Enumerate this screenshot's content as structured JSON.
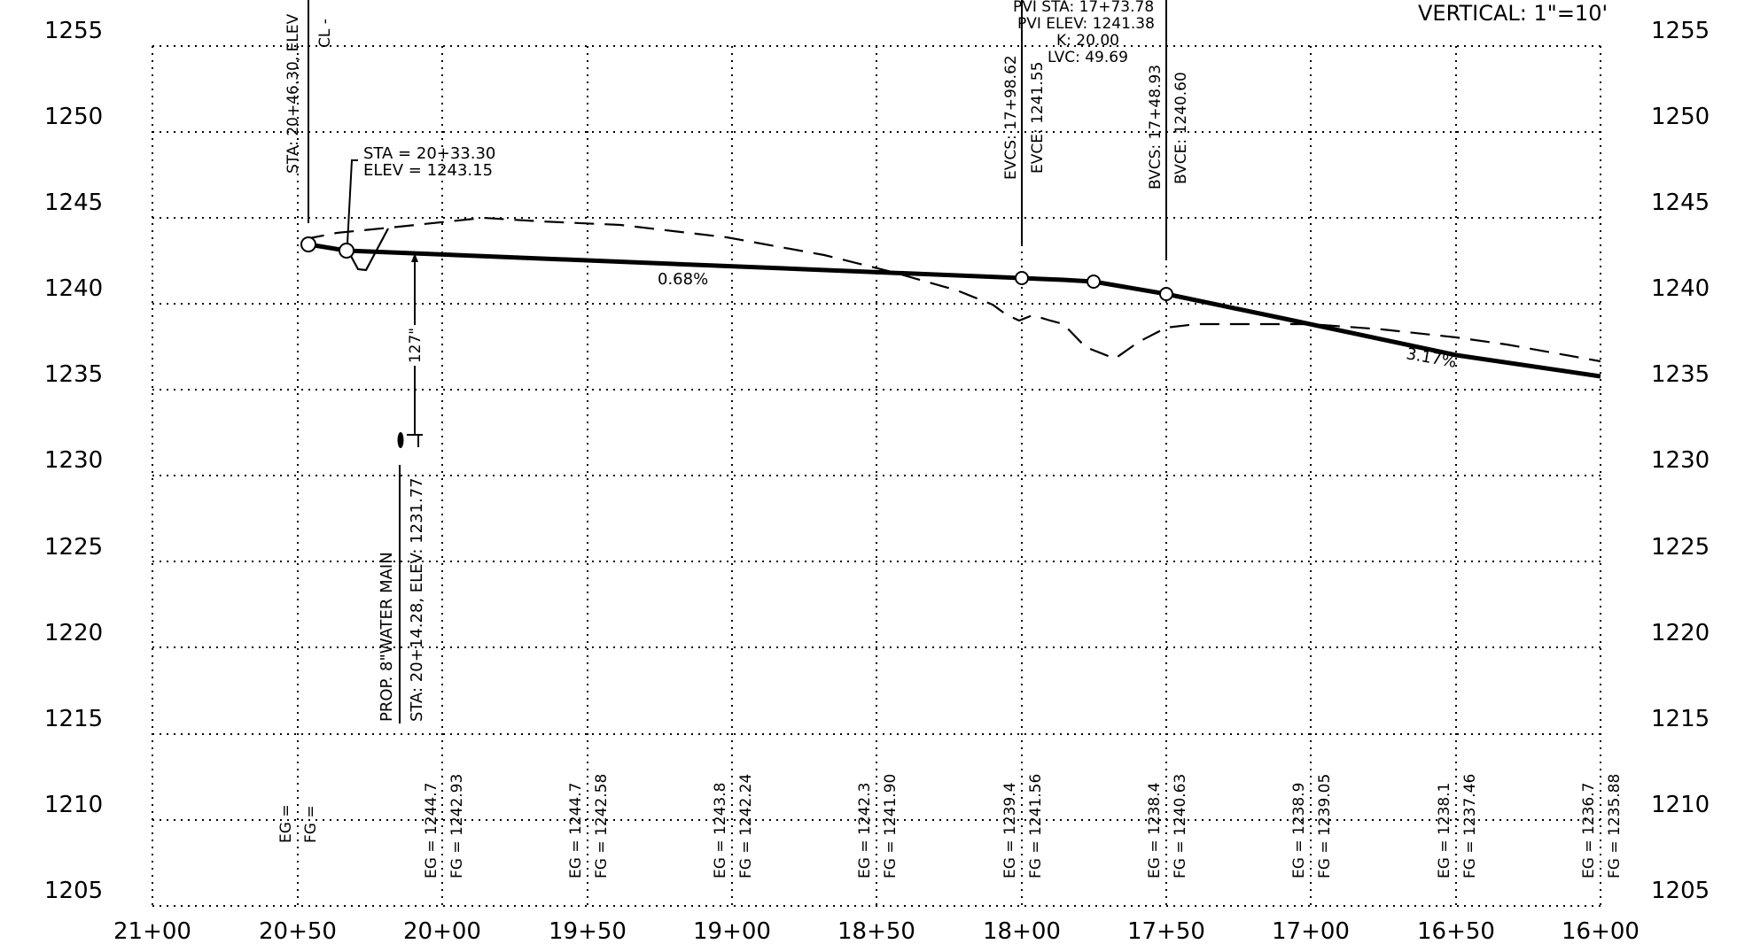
{
  "scale_note": "VERTICAL: 1\"=10'",
  "axes": {
    "elevations": [
      "1255",
      "1250",
      "1245",
      "1240",
      "1235",
      "1230",
      "1225",
      "1220",
      "1215",
      "1210",
      "1205"
    ],
    "stations": [
      "21+00",
      "20+50",
      "20+00",
      "19+50",
      "19+00",
      "18+50",
      "18+00",
      "17+50",
      "17+00",
      "16+50",
      "16+00"
    ]
  },
  "annotations": {
    "cl_station": "STA: 20+46.30, ELEV",
    "cl_mark": "CL -",
    "point_sta": "STA  =  20+33.30",
    "point_elev": "ELEV  =  1243.15",
    "water_clearance": "127\"",
    "water_main_title": "PROP. 8\"WATER MAIN",
    "water_main_sta": "STA:  20+14.28,  ELEV:  1231.77",
    "pvi_sta": "PVI  STA:  17+73.78",
    "pvi_elev": "PVI  ELEV:  1241.38",
    "pvi_k": "K:  20.00",
    "pvi_lvc": "LVC:  49.69",
    "evcs": "EVCS:  17+98.62",
    "evce": "EVCE:  1241.55",
    "bvcs": "BVCS:  17+48.93",
    "bvce": "BVCE:  1240.60",
    "grade_1": "0.68%",
    "grade_2": "3.17%"
  },
  "bottom_labels": [
    {
      "eg": "EG =",
      "fg": "FG ="
    },
    {
      "eg": "EG  =  1244.7",
      "fg": "FG  =  1242.93"
    },
    {
      "eg": "EG  =  1244.7",
      "fg": "FG  =  1242.58"
    },
    {
      "eg": "EG  =  1243.8",
      "fg": "FG  =  1242.24"
    },
    {
      "eg": "EG  =  1242.3",
      "fg": "FG  =  1241.90"
    },
    {
      "eg": "EG  =  1239.4",
      "fg": "FG  =  1241.56"
    },
    {
      "eg": "EG  =  1238.4",
      "fg": "FG  =  1240.63"
    },
    {
      "eg": "EG  =  1238.9",
      "fg": "FG  =  1239.05"
    },
    {
      "eg": "EG  =  1238.1",
      "fg": "FG  =  1237.46"
    },
    {
      "eg": "EG  =  1236.7",
      "fg": "FG  =  1235.88"
    }
  ]
}
